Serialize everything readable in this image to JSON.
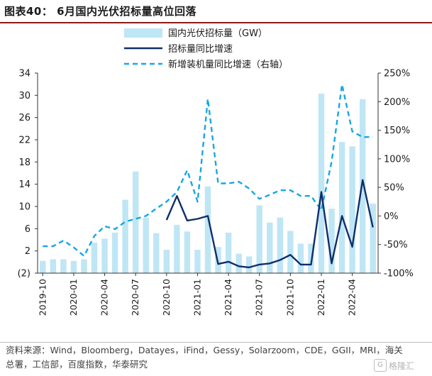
{
  "title": "图表40： 6月国内光伏招标量高位回落",
  "source": "资料来源：Wind，Bloomberg，Datayes，iFind，Gessy，Solarzoom，CDE，GGII，MRI，海关总署，工信部，百度指数，华泰研究",
  "watermark": "格隆汇",
  "colors": {
    "bar": "#bfe6f5",
    "line_solid": "#0f2f6b",
    "line_dashed": "#17a6e2",
    "title_rule": "#8B1A1A"
  },
  "chart_data": {
    "type": "bar",
    "title": "",
    "xlabel": "",
    "ylabel_left": "",
    "ylabel_right": "",
    "ylim_left": [
      -2,
      34
    ],
    "yticks_left": [
      "(2)",
      "2",
      "6",
      "10",
      "14",
      "18",
      "22",
      "26",
      "30",
      "34"
    ],
    "ylim_right": [
      -100,
      250
    ],
    "yticks_right": [
      "-100%",
      "-50%",
      "0%",
      "50%",
      "100%",
      "150%",
      "200%",
      "250%"
    ],
    "x_tick_labels": [
      "2019-10",
      "2020-01",
      "2020-04",
      "2020-07",
      "2020-10",
      "2021-01",
      "2021-04",
      "2021-07",
      "2021-10",
      "2022-01",
      "2022-04"
    ],
    "categories": [
      "2019-10",
      "2019-11",
      "2019-12",
      "2020-01",
      "2020-02",
      "2020-03",
      "2020-04",
      "2020-05",
      "2020-06",
      "2020-07",
      "2020-08",
      "2020-09",
      "2020-10",
      "2020-11",
      "2020-12",
      "2021-01",
      "2021-02",
      "2021-03",
      "2021-04",
      "2021-05",
      "2021-06",
      "2021-07",
      "2021-08",
      "2021-09",
      "2021-10",
      "2021-11",
      "2021-12",
      "2022-01",
      "2022-02",
      "2022-03",
      "2022-04",
      "2022-05",
      "2022-06"
    ],
    "series": [
      {
        "name": "国内光伏招标量（GW）",
        "kind": "bar",
        "axis": "left",
        "values": [
          0.2,
          0.5,
          0.5,
          0.2,
          0.5,
          3.5,
          4.2,
          5.3,
          11.2,
          16.3,
          8.0,
          5.2,
          2.2,
          6.7,
          5.5,
          2.2,
          13.6,
          2.7,
          5.3,
          1.5,
          1.0,
          10.2,
          7.1,
          8.0,
          5.6,
          3.3,
          3.3,
          30.3,
          9.6,
          21.6,
          20.8,
          29.3,
          10.5
        ]
      },
      {
        "name": "招标量同比增速",
        "kind": "line",
        "axis": "right",
        "values": [
          null,
          null,
          null,
          null,
          null,
          null,
          null,
          null,
          null,
          null,
          null,
          null,
          -7,
          35,
          -8,
          -5,
          0,
          -84,
          -80,
          -88,
          -90,
          -85,
          -83,
          -77,
          -68,
          -85,
          -85,
          42,
          -83,
          0,
          -54,
          63,
          -20
        ]
      },
      {
        "name": "新增装机量同比增速（右轴）",
        "kind": "line-dashed",
        "axis": "right",
        "values": [
          -53,
          -53,
          -43,
          -55,
          -70,
          -35,
          -18,
          -23,
          -10,
          -5,
          0,
          13,
          25,
          42,
          80,
          25,
          205,
          57,
          57,
          60,
          48,
          30,
          37,
          45,
          45,
          35,
          35,
          10,
          95,
          230,
          148,
          138,
          138
        ]
      }
    ],
    "legend_position": "top-center",
    "grid": false
  }
}
